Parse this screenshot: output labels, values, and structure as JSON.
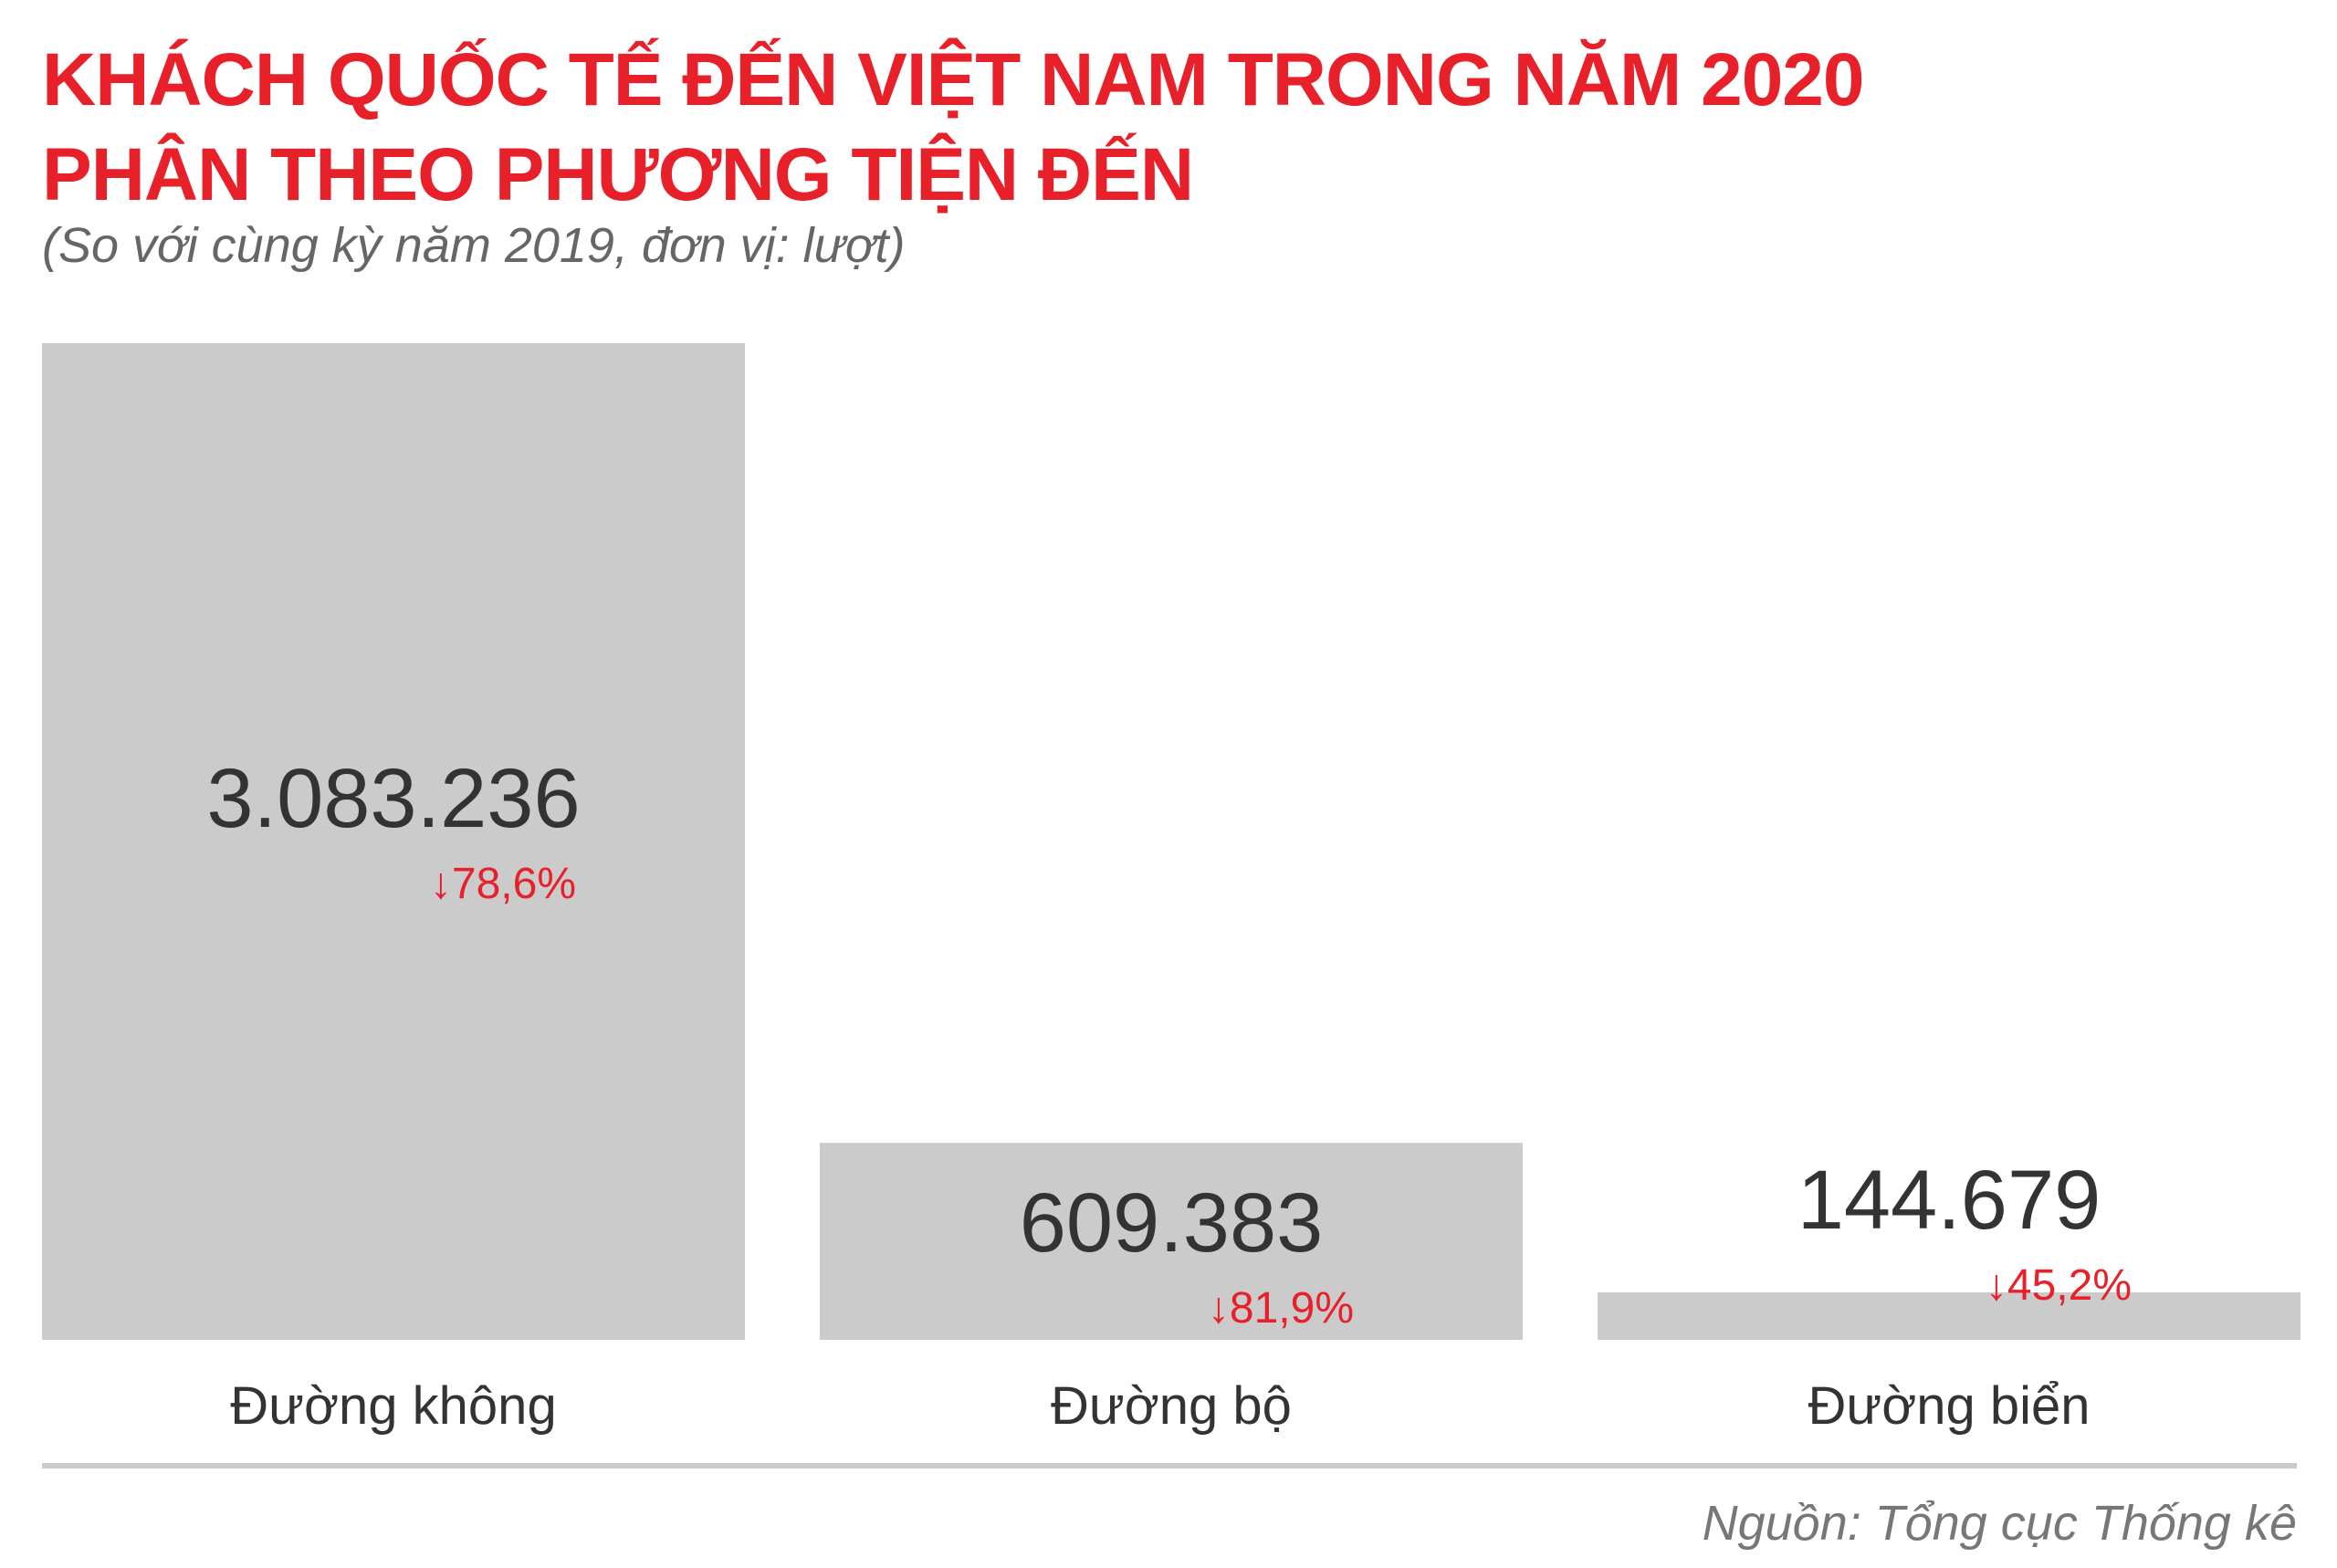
{
  "header": {
    "title_line1": "KHÁCH QUỐC TẾ ĐẾN VIỆT NAM TRONG NĂM 2020",
    "title_line2": "PHÂN THEO PHƯƠNG TIỆN ĐẾN",
    "subtitle": "(So với cùng kỳ năm 2019, đơn vị: lượt)"
  },
  "footer": {
    "source": "Nguồn: Tổng cục Thống kê"
  },
  "colors": {
    "title": "#e8202a",
    "bar": "#cccbcc",
    "value": "#333333",
    "change": "#e8202a"
  },
  "chart_data": {
    "type": "bar",
    "categories": [
      "Đường không",
      "Đường bộ",
      "Đường biển"
    ],
    "values": [
      3083236,
      609383,
      144679
    ],
    "value_labels": [
      "3.083.236",
      "609.383",
      "144.679"
    ],
    "change_labels": [
      "78,6%",
      "81,9%",
      "45,2%"
    ],
    "change_direction": [
      "down",
      "down",
      "down"
    ],
    "ylim": [
      0,
      3083236
    ],
    "grid": false,
    "legend": "none"
  }
}
